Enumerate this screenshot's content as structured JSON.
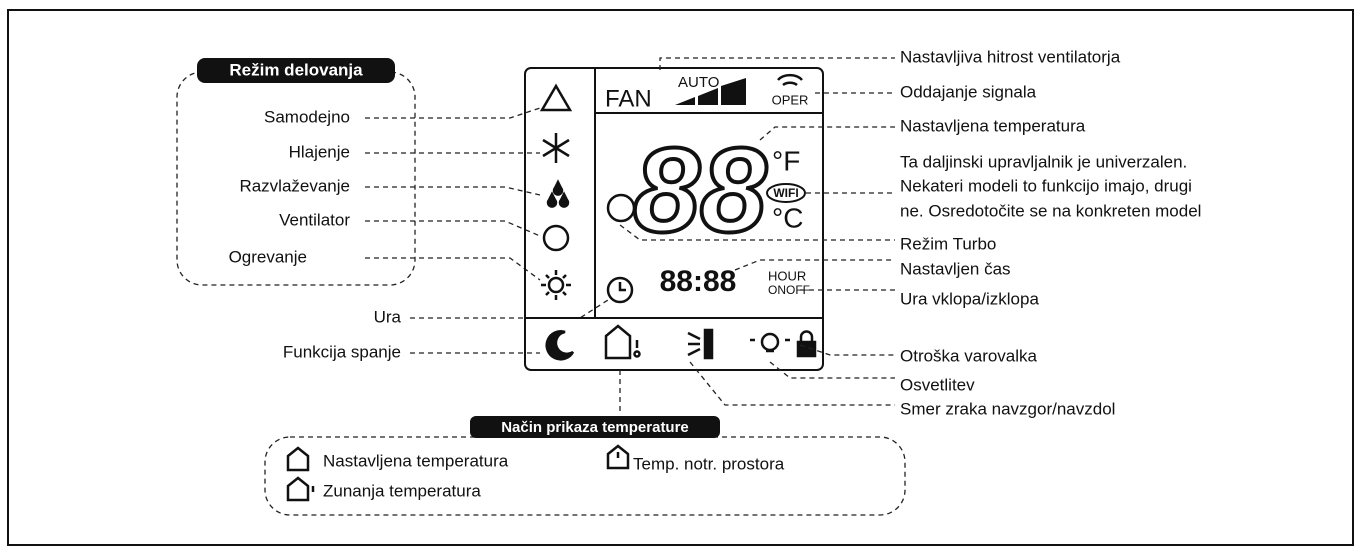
{
  "mode_box": {
    "title": "Režim delovanja",
    "items": [
      "Samodejno",
      "Hlajenje",
      "Razvlaževanje",
      "Ventilator",
      "Ogrevanje"
    ]
  },
  "left_labels": [
    "Ura",
    "Funkcija spanje"
  ],
  "display": {
    "fan": "FAN",
    "auto": "AUTO",
    "oper": "OPER",
    "temp": "88",
    "deg_f": "°F",
    "deg_c": "°C",
    "wifi": "WIFI",
    "time": "88:88",
    "hour": "HOUR",
    "onoff": "ONOFF"
  },
  "right_labels": [
    "Nastavljiva hitrost ventilatorja",
    "Oddajanje signala",
    "Nastavljena temperatura",
    "Ta daljinski upravljalnik je univerzalen.",
    "Nekateri modeli to funkcijo imajo, drugi",
    "ne. Osredotočite se na konkreten model",
    "Režim Turbo",
    "Nastavljen čas",
    "Ura vklopa/izklopa",
    "Otroška varovalka",
    "Osvetlitev",
    "Smer zraka navzgor/navzdol"
  ],
  "temp_box": {
    "title": "Način prikaza temperature",
    "items": [
      "Nastavljena temperatura",
      "Temp. notr. prostora",
      "Zunanja temperatura"
    ]
  }
}
